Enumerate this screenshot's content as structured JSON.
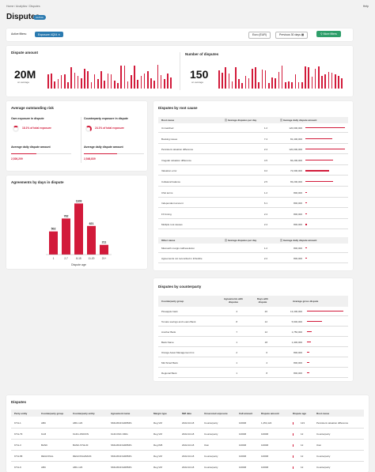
{
  "breadcrumb": "Home  /  Analytics  /  Disputes",
  "page_title": "Disputes",
  "beta_badge": "ALPHA",
  "help": "Help",
  "filters": {
    "label": "Active filters:",
    "chip": "Exposure 4Q24",
    "currency": "Euro (EUR)",
    "period": "Previous 30 days",
    "more_filters": "More filters"
  },
  "dispute_amount": {
    "title": "Dispute amount",
    "value": "20M",
    "sub": "on average"
  },
  "number_disputes": {
    "title": "Number of disputes",
    "value": "150",
    "sub": "on average"
  },
  "risk": {
    "title": "Average outstanding risk",
    "own_title": "Own exposure in dispute",
    "own_pct": "18.1% of total exposure",
    "own_pct_fill": 0.181,
    "cp_title": "Counterparty exposure in dispute",
    "cp_pct": "24.1% of total exposure",
    "cp_pct_fill": 0.241,
    "own_avg_title": "Average daily dispute amount",
    "own_avg": "2,526,209",
    "cp_avg_title": "Average daily dispute amount",
    "cp_avg": "2,548,839"
  },
  "age_chart": {
    "title": "Agreements by days in dispute",
    "xlabel": "Dispute age",
    "categories": [
      "1",
      "2-7",
      "8-15",
      "11-20",
      "21+"
    ],
    "values": [
      502,
      782,
      1108,
      621,
      211
    ]
  },
  "root_cause": {
    "title": "Disputes by root cause",
    "headers": [
      "Root cause",
      "Average disputes per day",
      "Average daily dispute amount"
    ],
    "rows": [
      [
        "Unmatched",
        "1.2",
        "120,000,000"
      ],
      [
        "Booking issues",
        "7.4",
        "81,400,000"
      ],
      [
        "Persistent valuation difference",
        "2.4",
        "120,000,000"
      ],
      [
        "Irregular valuation difference",
        "4.5",
        "84,200,000"
      ],
      [
        "Valuation error",
        "0.2",
        "72,000,000"
      ],
      [
        "Collateral balance",
        "2.5",
        "83,200,000"
      ],
      [
        "CSA terms",
        "1.2",
        "800,000"
      ],
      [
        "Independent amount",
        "6.1",
        "800,000"
      ],
      [
        "FX timing",
        "2.4",
        "800,000"
      ],
      [
        "Multiple root causes",
        "2.4",
        "800,000"
      ]
    ],
    "other_headers": [
      "Other cause",
      "Average disputes per day",
      "Average daily dispute amount"
    ],
    "other_rows": [
      [
        "Mismatch margin call/resolution",
        "1.2",
        "800,000"
      ],
      [
        "Agreements not reconciled in Inflexible",
        "2.2",
        "800,000"
      ]
    ]
  },
  "counterparty": {
    "title": "Disputes by counterparty",
    "headers": [
      "Counterparty group",
      "Agreements with disputes",
      "Days with dispute",
      "Average gross dispute"
    ],
    "rows": [
      [
        "Pineapple bank",
        "4",
        "20",
        "13,400,000"
      ],
      [
        "Tomato savings and Loans Bank",
        "8",
        "12",
        "5,600,000"
      ],
      [
        "Another Bank",
        "7",
        "12",
        "1,750,000"
      ],
      [
        "Bank Name",
        "1",
        "18",
        "1,400,000"
      ],
      [
        "Orange Asset Management Inc.",
        "2",
        "6",
        "800,000"
      ],
      [
        "Mid Sized Bank",
        "1",
        "4",
        "800,000"
      ],
      [
        "Regional Bank",
        "1",
        "8",
        "800,000"
      ]
    ]
  },
  "disputes_table": {
    "title": "Disputes",
    "headers": [
      "Party entity",
      "Counterparty group",
      "Counterparty entity",
      "Agreement name",
      "Margin type",
      "MM date",
      "Unsecured exposure",
      "Call amount",
      "Dispute amount",
      "Dispute age",
      "Root cause"
    ],
    "rows": [
      [
        "KTH-1",
        "ABC",
        "ABC-123",
        "SMG4541S1R8MIS",
        "Reg VM",
        "2022-02-18",
        "Counterparty",
        "1000M",
        "1,454,124",
        "123",
        "Persistent valuation difference"
      ],
      [
        "KTH-79",
        "KLM",
        "KLM-LONDON",
        "KLM-KMC-SMG",
        "Reg VM",
        "2022-02-18",
        "Counterparty",
        "1000M",
        "1000M",
        "12",
        "Counterparty"
      ],
      [
        "KTH-3",
        "BANK",
        "BANK-STHLM",
        "SMG4541S1R8MIS",
        "Reg IM5",
        "2022-02-18",
        "Own",
        "1000M",
        "1000M",
        "12",
        "Own"
      ],
      [
        "KTH-58",
        "REGIONAL",
        "REGIONALBANK",
        "SMG4541S1R8MIS",
        "Reg VM",
        "2022-02-18",
        "Counterparty",
        "1000M",
        "1000M",
        "12",
        "Counterparty"
      ],
      [
        "KTH-9",
        "ABC",
        "ABC-123",
        "SMG4541S1R8MIS",
        "Reg VM",
        "2022-02-18",
        "Counterparty",
        "1000M",
        "1000M",
        "12",
        "Counterparty"
      ]
    ]
  },
  "colors": {
    "accent": "#d21a3a",
    "primary": "#2a7ab0",
    "success": "#2e9e6a"
  },
  "icons": [
    "calendar-icon",
    "filter-icon",
    "info-icon",
    "sort-icon"
  ]
}
